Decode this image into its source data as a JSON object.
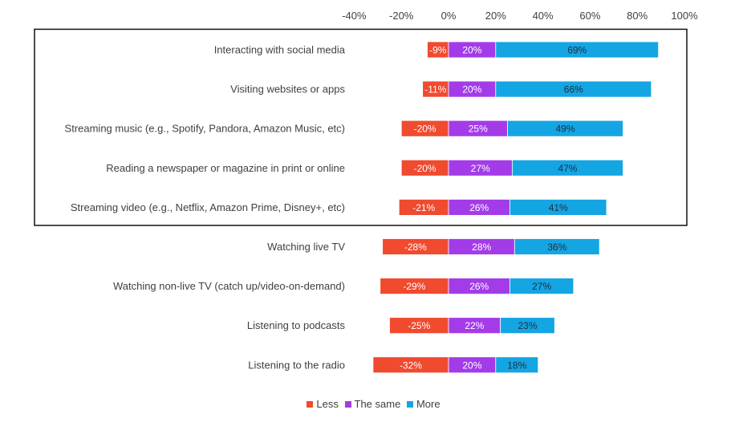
{
  "chart_data": {
    "type": "bar",
    "orientation": "horizontal",
    "stacked": true,
    "categories": [
      "Interacting with social media",
      "Visiting websites or apps",
      "Streaming music (e.g., Spotify, Pandora, Amazon Music, etc)",
      "Reading a newspaper or magazine in print or online",
      "Streaming video (e.g., Netflix, Amazon Prime, Disney+, etc)",
      "Watching live TV",
      "Watching non-live TV (catch up/video-on-demand)",
      "Listening to podcasts",
      "Listening to the radio"
    ],
    "series": [
      {
        "name": "Less",
        "color": "#F04A2F",
        "values": [
          -9,
          -11,
          -20,
          -20,
          -21,
          -28,
          -29,
          -25,
          -32
        ],
        "labels": [
          "-9%",
          "-11%",
          "-20%",
          "-20%",
          "-21%",
          "-28%",
          "-29%",
          "-25%",
          "-32%"
        ]
      },
      {
        "name": "The same",
        "color": "#A33CE8",
        "values": [
          20,
          20,
          25,
          27,
          26,
          28,
          26,
          22,
          20
        ],
        "labels": [
          "20%",
          "20%",
          "25%",
          "27%",
          "26%",
          "28%",
          "26%",
          "22%",
          "20%"
        ]
      },
      {
        "name": "More",
        "color": "#14A5E3",
        "values": [
          69,
          66,
          49,
          47,
          41,
          36,
          27,
          23,
          18
        ],
        "labels": [
          "69%",
          "66%",
          "49%",
          "47%",
          "41%",
          "36%",
          "27%",
          "23%",
          "18%"
        ]
      }
    ],
    "xlim": [
      -40,
      100
    ],
    "x_ticks": [
      "-40%",
      "-20%",
      "0%",
      "20%",
      "40%",
      "60%",
      "80%",
      "100%"
    ],
    "x_axis_position": "top",
    "highlight_box": "first 5 categories",
    "grid": false,
    "legend_position": "bottom"
  }
}
